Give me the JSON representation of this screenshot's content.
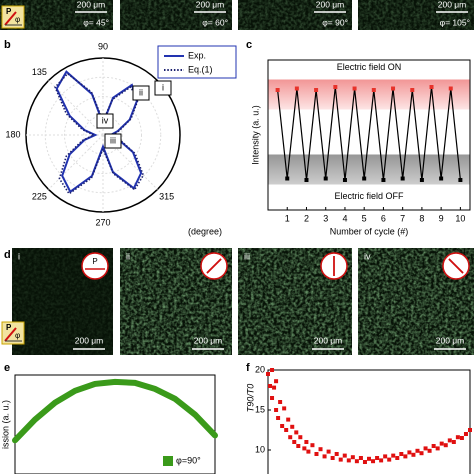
{
  "panel_labels": [
    "b",
    "c",
    "d",
    "e",
    "f"
  ],
  "top_row": [
    {
      "angle": "φ= 45°",
      "scale_bar": "200 μm"
    },
    {
      "angle": "φ= 60°",
      "scale_bar": "200 μm"
    },
    {
      "angle": "φ= 90°",
      "scale_bar": "200 μm"
    },
    {
      "angle": "φ= 105°",
      "scale_bar": "200 μm"
    }
  ],
  "inset_icon": {
    "polarizer": "P",
    "angle": "φ"
  },
  "panel_d": [
    {
      "label": "i",
      "polarizer": "P",
      "scale_bar": "200 μm"
    },
    {
      "label": "ii",
      "scale_bar": "200 μm"
    },
    {
      "label": "iii",
      "scale_bar": "200 μm"
    },
    {
      "label": "iv",
      "scale_bar": "200 μm"
    }
  ],
  "chart_data": [
    {
      "type": "polar",
      "x": [
        0,
        15,
        30,
        45,
        60,
        75,
        90,
        105,
        120,
        135,
        150,
        165,
        180,
        195,
        210,
        225,
        240,
        255,
        270,
        285,
        300,
        315,
        330,
        345
      ],
      "series": [
        {
          "name": "Exp.",
          "color": "#2233b0",
          "style": "solid",
          "values": [
            0.1,
            0.2,
            0.4,
            0.62,
            0.75,
            0.5,
            0.15,
            0.55,
            0.95,
            0.85,
            0.5,
            0.25,
            0.1,
            0.25,
            0.5,
            0.75,
            0.85,
            0.55,
            0.15,
            0.5,
            0.8,
            0.7,
            0.45,
            0.2
          ]
        },
        {
          "name": "Eq.(1)",
          "color": "#1a1f6e",
          "style": "dotted",
          "values": [
            0.12,
            0.22,
            0.42,
            0.64,
            0.72,
            0.48,
            0.18,
            0.58,
            0.92,
            0.88,
            0.55,
            0.28,
            0.12,
            0.28,
            0.55,
            0.8,
            0.88,
            0.58,
            0.18,
            0.52,
            0.82,
            0.74,
            0.48,
            0.22
          ]
        }
      ],
      "rlim": [
        0,
        1
      ],
      "xticks": [
        90,
        135,
        180,
        225,
        270,
        315
      ],
      "xlabel": "(degree)",
      "annotations": [
        "i",
        "ii",
        "iii",
        "iv"
      ]
    },
    {
      "type": "line",
      "x": [
        0.5,
        1,
        1.5,
        2,
        2.5,
        3,
        3.5,
        4,
        4.5,
        5,
        5.5,
        6,
        6.5,
        7,
        7.5,
        8,
        8.5,
        9,
        9.5,
        10
      ],
      "values": [
        0.8,
        0.21,
        0.81,
        0.2,
        0.8,
        0.21,
        0.82,
        0.2,
        0.81,
        0.21,
        0.8,
        0.2,
        0.81,
        0.21,
        0.8,
        0.2,
        0.82,
        0.21,
        0.81,
        0.2
      ],
      "xlim": [
        0,
        10.5
      ],
      "ylim": [
        0,
        1
      ],
      "xticks": [
        1,
        2,
        3,
        4,
        5,
        6,
        7,
        8,
        9,
        10
      ],
      "xlabel": "Number of cycle (#)",
      "ylabel": "Intensity (a. u.)",
      "line_color": "#000000",
      "marker_colors": {
        "high": "#e8322a",
        "low": "#000000"
      },
      "bands": [
        {
          "label": "Electric field ON",
          "range": [
            0.67,
            0.87
          ],
          "color": "#f5a8a8",
          "text_color": "#e02020"
        },
        {
          "label": "Electric field OFF",
          "range": [
            0.17,
            0.37
          ],
          "color": "#a6a6a6",
          "text_color": "#000000"
        }
      ]
    },
    {
      "type": "line",
      "x": [
        0,
        1,
        2,
        3,
        4,
        5,
        6,
        7,
        8,
        9,
        10
      ],
      "series": [
        {
          "name": "φ=90°",
          "color": "#3a9a1a",
          "values": [
            0.34,
            0.55,
            0.72,
            0.84,
            0.91,
            0.93,
            0.92,
            0.86,
            0.76,
            0.6,
            0.39
          ]
        }
      ],
      "xlim": [
        0,
        10
      ],
      "ylim": [
        0,
        1
      ],
      "ylabel": "ission (a. u.)",
      "legend": "lower right"
    },
    {
      "type": "scatter",
      "x": [
        0,
        1,
        2,
        2,
        3,
        4,
        4,
        5,
        6,
        7,
        8,
        9,
        10,
        11,
        12,
        13,
        14,
        15,
        16,
        18,
        19,
        20,
        22,
        24,
        26,
        28,
        30,
        32,
        34,
        36,
        38,
        40,
        42,
        44,
        46,
        48,
        50,
        52,
        54,
        56,
        58,
        60,
        62,
        64,
        66,
        68,
        70,
        72,
        74,
        76,
        78,
        80,
        82,
        84,
        86,
        88,
        90,
        92,
        94,
        96,
        98,
        100
      ],
      "values": [
        19.5,
        18,
        20,
        16.5,
        17.8,
        15,
        18.6,
        14,
        16,
        13,
        15.2,
        12.5,
        13.8,
        11.6,
        12.9,
        11,
        12.2,
        10.5,
        11.6,
        10.2,
        11,
        9.8,
        10.6,
        9.5,
        10.1,
        9.2,
        9.8,
        9,
        9.5,
        8.8,
        9.3,
        8.7,
        9.1,
        8.6,
        9,
        8.5,
        8.9,
        8.6,
        9,
        8.7,
        9.2,
        8.8,
        9.3,
        9,
        9.5,
        9.2,
        9.7,
        9.4,
        9.9,
        9.6,
        10.2,
        9.9,
        10.5,
        10.2,
        10.8,
        10.6,
        11.2,
        11,
        11.6,
        11.5,
        12,
        12.5
      ],
      "color": "#e01010",
      "xlim": [
        0,
        100
      ],
      "ylim": [
        7,
        20
      ],
      "yticks": [
        10,
        15,
        20
      ],
      "ylabel": "T90/T0"
    }
  ]
}
